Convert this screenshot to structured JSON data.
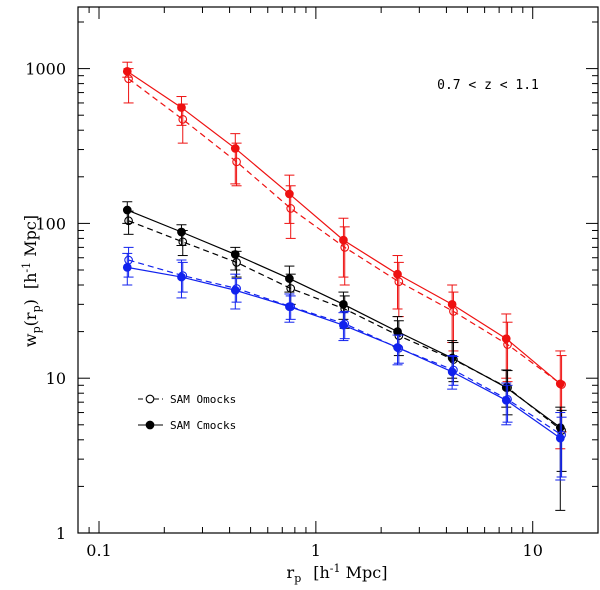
{
  "chart_data": {
    "type": "line",
    "annotation": "0.7 < z < 1.1",
    "xlabel": {
      "base": "r",
      "sub": "p",
      "unit_open": "[h",
      "unit_sup": "-1",
      "unit_close": " Mpc]"
    },
    "ylabel": {
      "w": "w",
      "w_sub": "p",
      "open": "(r",
      "r_sub": "p",
      "close": ")",
      "unit_open": "[h",
      "unit_sup": "-1",
      "unit_close": " Mpc]"
    },
    "xscale": "log",
    "yscale": "log",
    "xlim": [
      0.08,
      20
    ],
    "ylim": [
      1,
      2500
    ],
    "xticks": [
      {
        "v": 0.1,
        "label": "0.1"
      },
      {
        "v": 1,
        "label": "1"
      },
      {
        "v": 10,
        "label": "10"
      }
    ],
    "yticks": [
      {
        "v": 1,
        "label": "1"
      },
      {
        "v": 10,
        "label": "10"
      },
      {
        "v": 100,
        "label": "100"
      },
      {
        "v": 1000,
        "label": "1000"
      }
    ],
    "legend": [
      {
        "label": "SAM Omocks",
        "marker": "open",
        "style": "dashed"
      },
      {
        "label": "SAM Cmocks",
        "marker": "filled",
        "style": "solid"
      }
    ],
    "x": [
      0.135,
      0.24,
      0.425,
      0.755,
      1.34,
      2.38,
      4.25,
      7.55,
      13.4
    ],
    "series": [
      {
        "name": "red Cmocks",
        "color": "#ee1111",
        "marker": "filled",
        "style": "solid",
        "values": [
          960,
          560,
          305,
          155,
          78,
          47,
          30,
          18,
          9.2
        ],
        "err_lo": [
          880,
          430,
          180,
          100,
          45,
          28,
          17,
          10,
          3.5
        ],
        "err_hi": [
          1100,
          660,
          380,
          205,
          108,
          62,
          40,
          26,
          15
        ]
      },
      {
        "name": "red Omocks",
        "color": "#ee1111",
        "marker": "open",
        "style": "dashed",
        "values": [
          860,
          470,
          250,
          125,
          70,
          42,
          27,
          16.5,
          9.1
        ],
        "err_lo": [
          600,
          330,
          175,
          80,
          40,
          25,
          15,
          9.5,
          4.5
        ],
        "err_hi": [
          1000,
          590,
          330,
          175,
          95,
          56,
          36,
          23,
          14
        ]
      },
      {
        "name": "black Cmocks",
        "color": "#000000",
        "marker": "filled",
        "style": "solid",
        "values": [
          122,
          88,
          63,
          44,
          30,
          20,
          13.5,
          8.7,
          4.8
        ],
        "err_lo": [
          100,
          72,
          50,
          36,
          24,
          16,
          10,
          6.5,
          1.4
        ],
        "err_hi": [
          138,
          98,
          70,
          53,
          36,
          25,
          17.5,
          11.3,
          6.5
        ]
      },
      {
        "name": "black Omocks",
        "color": "#000000",
        "marker": "open",
        "style": "dashed",
        "values": [
          104,
          76,
          56,
          38,
          28,
          18.8,
          13.2,
          8.7,
          4.6
        ],
        "err_lo": [
          85,
          62,
          45,
          30,
          21,
          14,
          9.5,
          5.8,
          2.5
        ],
        "err_hi": [
          120,
          90,
          66,
          47,
          34,
          23.5,
          17,
          11.2,
          6.2
        ]
      },
      {
        "name": "blue Cmocks",
        "color": "#1122ee",
        "marker": "filled",
        "style": "solid",
        "values": [
          52,
          45,
          37,
          29,
          22,
          15.8,
          11,
          7.2,
          4.1
        ],
        "err_lo": [
          40,
          33,
          28,
          23,
          17.5,
          12.2,
          8.5,
          5,
          2.2
        ],
        "err_hi": [
          64,
          58,
          47,
          35,
          26.5,
          19,
          14,
          9.3,
          6
        ]
      },
      {
        "name": "blue Omocks",
        "color": "#1122ee",
        "marker": "open",
        "style": "dashed",
        "values": [
          58,
          46,
          38,
          29,
          22.5,
          15.6,
          11.3,
          7.3,
          4.3
        ],
        "err_lo": [
          45,
          36,
          31,
          24,
          18,
          12.5,
          9,
          5.2,
          2.3
        ],
        "err_hi": [
          70,
          56,
          44,
          34,
          27,
          19,
          13.8,
          9,
          5.6
        ]
      }
    ]
  }
}
